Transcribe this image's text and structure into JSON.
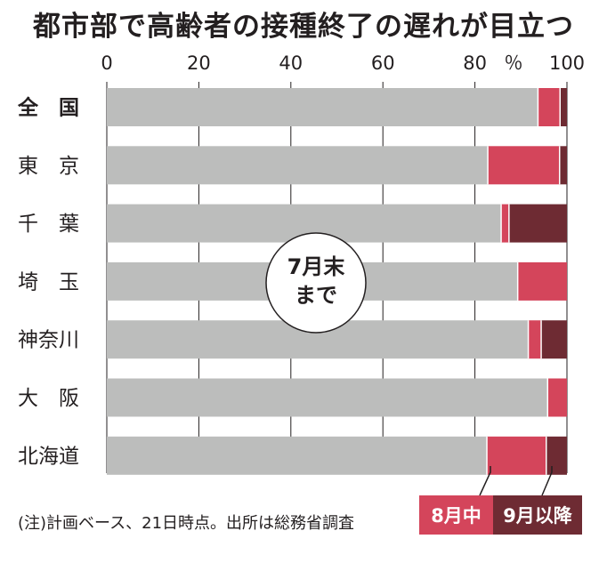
{
  "title": "都市部で高齢者の接種終了の遅れが目立つ",
  "unit": "％",
  "annotation": [
    "7月末",
    "まで"
  ],
  "note": "(注)計画ベース、21日時点。出所は総務省調査",
  "colors": {
    "july": "#bcbdbc",
    "august": "#d4455b",
    "september": "#6e2b33"
  },
  "chart_data": {
    "type": "bar",
    "orientation": "horizontal",
    "stacked": true,
    "title": "都市部で高齢者の接種終了の遅れが目立つ",
    "xlim": [
      0,
      100
    ],
    "xticks": [
      0,
      20,
      40,
      60,
      80,
      100
    ],
    "unit": "％",
    "categories": [
      "全　国",
      "東　京",
      "千　葉",
      "埼　玉",
      "神奈川",
      "大　阪",
      "北海道"
    ],
    "series": [
      {
        "name": "7月末まで",
        "values": [
          93.7,
          82.8,
          85.7,
          89.3,
          91.6,
          95.8,
          82.6
        ]
      },
      {
        "name": "8月中",
        "values": [
          4.8,
          15.6,
          1.7,
          10.7,
          2.8,
          4.2,
          12.9
        ]
      },
      {
        "name": "9月以降",
        "values": [
          1.5,
          1.6,
          12.6,
          0,
          5.6,
          0,
          4.5
        ]
      }
    ],
    "legend": [
      "8月中",
      "9月以降"
    ]
  }
}
